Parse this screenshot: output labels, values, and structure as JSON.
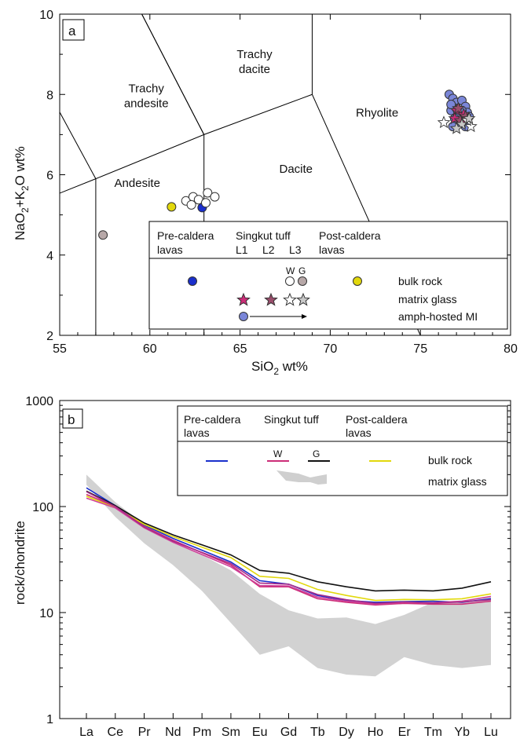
{
  "chart_data": [
    {
      "type": "scatter",
      "panel_label": "a",
      "xlabel": "SiO",
      "xlabel_sub": "2",
      "xlabel_tail": " wt%",
      "ylabel": "NaO",
      "ylabel_sub1": "2",
      "ylabel_mid": "+K",
      "ylabel_sub2": "2",
      "ylabel_tail": "O wt%",
      "xlim": [
        55,
        80
      ],
      "ylim": [
        2,
        10
      ],
      "xticks": [
        "55",
        "60",
        "65",
        "70",
        "75",
        "80"
      ],
      "yticks": [
        "2",
        "4",
        "6",
        "8",
        "10"
      ],
      "fields": [
        {
          "lines": [
            "Trachy",
            "andesite"
          ],
          "x": 59.8,
          "y": 8.05
        },
        {
          "lines": [
            "Trachy",
            "dacite"
          ],
          "x": 65.8,
          "y": 8.9
        },
        {
          "lines": [
            "Rhyolite"
          ],
          "x": 72.6,
          "y": 7.45
        },
        {
          "lines": [
            "Dacite"
          ],
          "x": 68.1,
          "y": 6.05
        },
        {
          "lines": [
            "Andesite"
          ],
          "x": 59.3,
          "y": 5.7
        }
      ],
      "legend": {
        "groups": [
          "Pre-caldera",
          "lavas",
          "Singkut tuff",
          "L1",
          "L2",
          "L3",
          "Post-caldera",
          "lavas"
        ],
        "wg": [
          "W",
          "G"
        ],
        "rows": [
          "bulk rock",
          "matrix glass",
          "amph-hosted MI"
        ]
      },
      "colors": {
        "pre": "#1a2fcc",
        "w": "#ffffff",
        "g": "#b7a8a8",
        "post": "#e2d80c",
        "l1": "#cc2d78",
        "l2": "#9a4e6c",
        "l3w": "#ffffff",
        "l3g": "#c8c8c8",
        "mi": "#7a86d8"
      },
      "series": [
        {
          "group": "pre-caldera bulk",
          "x": [
            62.9
          ],
          "y": [
            5.18
          ]
        },
        {
          "group": "post-caldera bulk",
          "x": [
            61.2
          ],
          "y": [
            5.2
          ]
        },
        {
          "group": "grey bulk",
          "x": [
            57.4
          ],
          "y": [
            4.5
          ]
        },
        {
          "group": "W bulk",
          "x": [
            62.0,
            62.4,
            62.7,
            63.2,
            63.6,
            62.3,
            63.1
          ],
          "y": [
            5.35,
            5.45,
            5.38,
            5.55,
            5.45,
            5.25,
            5.3
          ]
        },
        {
          "group": "amph-hosted MI",
          "x": [
            76.6,
            76.8,
            77.0,
            77.3,
            76.7,
            77.5,
            77.2,
            76.9,
            77.6,
            77.1,
            76.8,
            77.4,
            77.0,
            77.7,
            77.5,
            76.7,
            77.3
          ],
          "y": [
            8.0,
            7.9,
            7.8,
            7.85,
            7.6,
            7.7,
            7.5,
            7.4,
            7.55,
            7.3,
            7.2,
            7.35,
            7.65,
            7.45,
            7.2,
            7.75,
            7.6
          ]
        },
        {
          "group": "L1 glass",
          "x": [
            77.0,
            77.4,
            76.9,
            77.3
          ],
          "y": [
            7.6,
            7.5,
            7.4,
            7.3
          ]
        },
        {
          "group": "L2 glass",
          "x": [
            77.1,
            77.5,
            77.2
          ],
          "y": [
            7.65,
            7.45,
            7.35
          ]
        },
        {
          "group": "L3 W glass",
          "x": [
            76.3,
            77.8,
            77.6
          ],
          "y": [
            7.3,
            7.2,
            7.35
          ]
        },
        {
          "group": "L3 G glass",
          "x": [
            77.3,
            77.7,
            77.0
          ],
          "y": [
            7.25,
            7.4,
            7.15
          ]
        }
      ]
    },
    {
      "type": "line",
      "panel_label": "b",
      "ylabel": "rock/chondrite",
      "yscale": "log",
      "ylim": [
        1,
        1000
      ],
      "yticks": [
        "1",
        "10",
        "100",
        "1000"
      ],
      "categories": [
        "La",
        "Ce",
        "Pr",
        "Nd",
        "Pm",
        "Sm",
        "Eu",
        "Gd",
        "Tb",
        "Dy",
        "Ho",
        "Er",
        "Tm",
        "Yb",
        "Lu"
      ],
      "legend": {
        "groups": [
          "Pre-caldera",
          "lavas",
          "Singkut tuff",
          "Post-caldera",
          "lavas"
        ],
        "wg": [
          "W",
          "G"
        ],
        "rows": [
          "bulk rock",
          "matrix glass"
        ]
      },
      "band": {
        "upper": [
          200,
          110,
          68,
          46,
          35,
          25,
          15,
          10.5,
          8.8,
          9,
          7.8,
          9.5,
          12.5,
          13,
          14
        ],
        "lower": [
          160,
          80,
          45,
          28,
          16,
          8,
          4,
          4.8,
          3,
          2.6,
          2.5,
          3.8,
          3.2,
          3,
          3.2
        ]
      },
      "series": [
        {
          "color": "#1a2fcc",
          "values": [
            150,
            102,
            67,
            50,
            null,
            30,
            20,
            18.5,
            14.5,
            13,
            12.5,
            12.7,
            12.8,
            12.5,
            13.5
          ]
        },
        {
          "color": "#111111",
          "values": [
            140,
            102,
            70,
            54,
            null,
            35,
            25,
            23.5,
            19.5,
            17.5,
            16,
            16.3,
            16,
            17,
            19.5
          ]
        },
        {
          "color": "#e2d80c",
          "values": [
            125,
            98,
            68,
            52,
            null,
            33,
            22,
            21,
            16.5,
            14.5,
            13,
            13.3,
            13.2,
            13.5,
            15
          ]
        },
        {
          "color": "#cc2d78",
          "values": [
            130,
            100,
            65,
            48,
            null,
            28,
            17.5,
            17.5,
            13.5,
            12.5,
            11.8,
            12.2,
            12,
            12,
            12.8
          ]
        },
        {
          "color": "#d0409a",
          "values": [
            120,
            97,
            63,
            46,
            null,
            27,
            18,
            17.8,
            14,
            12.8,
            12,
            12.5,
            12.4,
            12.8,
            14.2
          ]
        },
        {
          "color": "#a82c8a",
          "values": [
            138,
            100,
            64,
            47,
            null,
            29,
            19,
            18.5,
            14.8,
            13.2,
            12.2,
            12.6,
            12.3,
            12.6,
            13.2
          ]
        }
      ]
    }
  ]
}
